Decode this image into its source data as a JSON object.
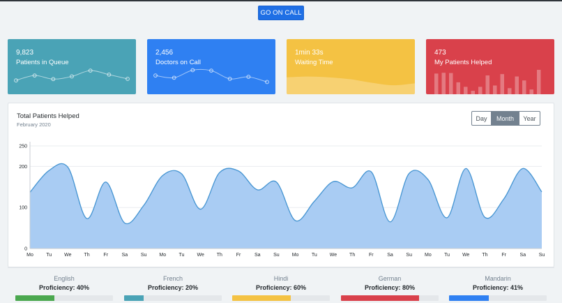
{
  "header": {
    "go_on_call_label": "GO ON CALL"
  },
  "cards": [
    {
      "value": "9,823",
      "label": "Patients in Queue",
      "color": "#4aa3b6",
      "sparkline": [
        40,
        62,
        46,
        58,
        84,
        66,
        47
      ]
    },
    {
      "value": "2,456",
      "label": "Doctors on Call",
      "color": "#2f80f2",
      "sparkline": [
        62,
        52,
        86,
        84,
        47,
        56,
        33
      ]
    },
    {
      "value": "1min 33s",
      "label": "Waiting Time",
      "color": "#f4c243",
      "area": [
        62,
        65,
        62,
        55,
        42,
        33,
        40
      ]
    },
    {
      "value": "473",
      "label": "My Patients Helped",
      "color": "#d9414b",
      "bars": [
        78,
        81,
        80,
        45,
        28,
        13,
        28,
        71,
        33,
        76,
        23,
        67,
        52,
        18,
        92
      ]
    }
  ],
  "main_chart": {
    "title": "Total Patients Helped",
    "subtitle": "February 2020",
    "range_buttons": [
      "Day",
      "Month",
      "Year"
    ],
    "active_range": "Month"
  },
  "chart_data": {
    "type": "area",
    "title": "Total Patients Helped",
    "subtitle": "February 2020",
    "x": [
      "Mo",
      "Tu",
      "We",
      "Th",
      "Fr",
      "Sa",
      "Su",
      "Mo",
      "Tu",
      "We",
      "Th",
      "Fr",
      "Sa",
      "Su",
      "Mo",
      "Tu",
      "We",
      "Th",
      "Fr",
      "Sa",
      "Su",
      "Mo",
      "Tu",
      "We",
      "Th",
      "Fr",
      "Sa",
      "Su"
    ],
    "values": [
      137,
      190,
      198,
      73,
      162,
      62,
      105,
      178,
      182,
      96,
      185,
      189,
      143,
      162,
      68,
      115,
      163,
      148,
      187,
      65,
      183,
      168,
      75,
      195,
      76,
      121,
      195,
      138
    ],
    "ylim": [
      0,
      250
    ],
    "yticks": [
      0,
      100,
      200,
      250
    ],
    "color": "#a9ccf3",
    "line_color": "#4393d1"
  },
  "languages": [
    {
      "name": "English",
      "proficiency": "Proficiency: 40%",
      "value": 40,
      "color": "#4ba84f"
    },
    {
      "name": "French",
      "proficiency": "Proficiency: 20%",
      "value": 20,
      "color": "#4aa3b6"
    },
    {
      "name": "Hindi",
      "proficiency": "Proficiency: 60%",
      "value": 60,
      "color": "#f4c243"
    },
    {
      "name": "German",
      "proficiency": "Proficiency: 80%",
      "value": 80,
      "color": "#d9414b"
    },
    {
      "name": "Mandarin",
      "proficiency": "Proficiency: 41%",
      "value": 41,
      "color": "#2f80f2"
    }
  ]
}
